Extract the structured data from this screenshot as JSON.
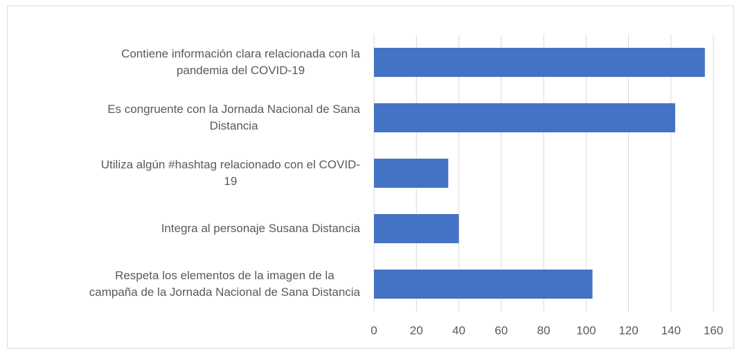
{
  "chart_data": {
    "type": "bar",
    "orientation": "horizontal",
    "categories": [
      "Contiene información clara relacionada con la\npandemia del COVID-19",
      "Es congruente con la Jornada Nacional de Sana\nDistancia",
      "Utiliza algún #hashtag relacionado con el COVID-\n19",
      "Integra al personaje Susana Distancia",
      "Respeta los elementos de la imagen de la\ncampaña de la Jornada Nacional de Sana Distancia"
    ],
    "values": [
      156,
      142,
      35,
      40,
      103
    ],
    "color": "#4472c4",
    "xlim": [
      0,
      160
    ],
    "xticks": [
      0,
      20,
      40,
      60,
      80,
      100,
      120,
      140,
      160
    ],
    "grid": true
  }
}
